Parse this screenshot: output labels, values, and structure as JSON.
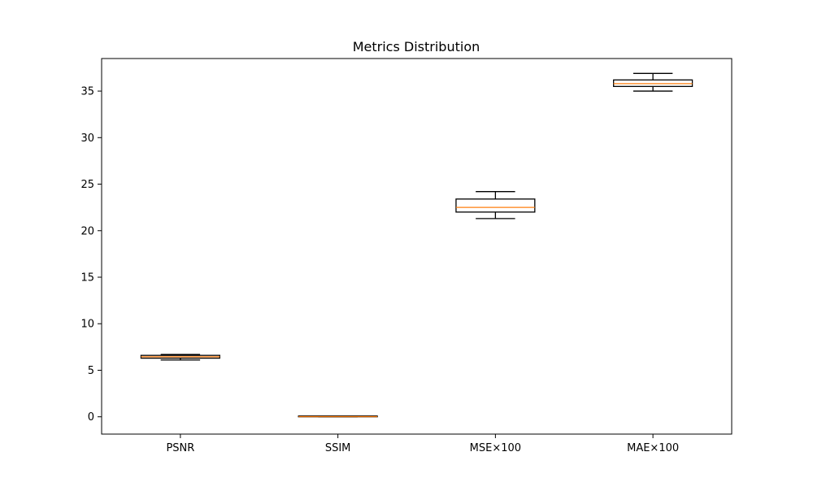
{
  "chart_data": {
    "type": "box",
    "title": "Metrics Distribution",
    "xlabel": "",
    "ylabel": "",
    "categories": [
      "PSNR",
      "SSIM",
      "MSE×100",
      "MAE×100"
    ],
    "boxes": [
      {
        "name": "PSNR",
        "whisker_low": 6.1,
        "q1": 6.3,
        "median": 6.45,
        "q3": 6.6,
        "whisker_high": 6.7
      },
      {
        "name": "SSIM",
        "whisker_low": 0.0,
        "q1": 0.0,
        "median": 0.02,
        "q3": 0.04,
        "whisker_high": 0.05
      },
      {
        "name": "MSE×100",
        "whisker_low": 21.3,
        "q1": 22.0,
        "median": 22.5,
        "q3": 23.4,
        "whisker_high": 24.2
      },
      {
        "name": "MAE×100",
        "whisker_low": 35.0,
        "q1": 35.5,
        "median": 35.8,
        "q3": 36.2,
        "whisker_high": 36.9
      }
    ],
    "y_ticks": [
      0,
      5,
      10,
      15,
      20,
      25,
      30,
      35
    ],
    "ylim": [
      -1.86,
      38.5
    ],
    "grid": false,
    "legend": "none",
    "colors": {
      "box": "#000000",
      "median": "#ff7f0e",
      "whisker": "#000000"
    }
  }
}
